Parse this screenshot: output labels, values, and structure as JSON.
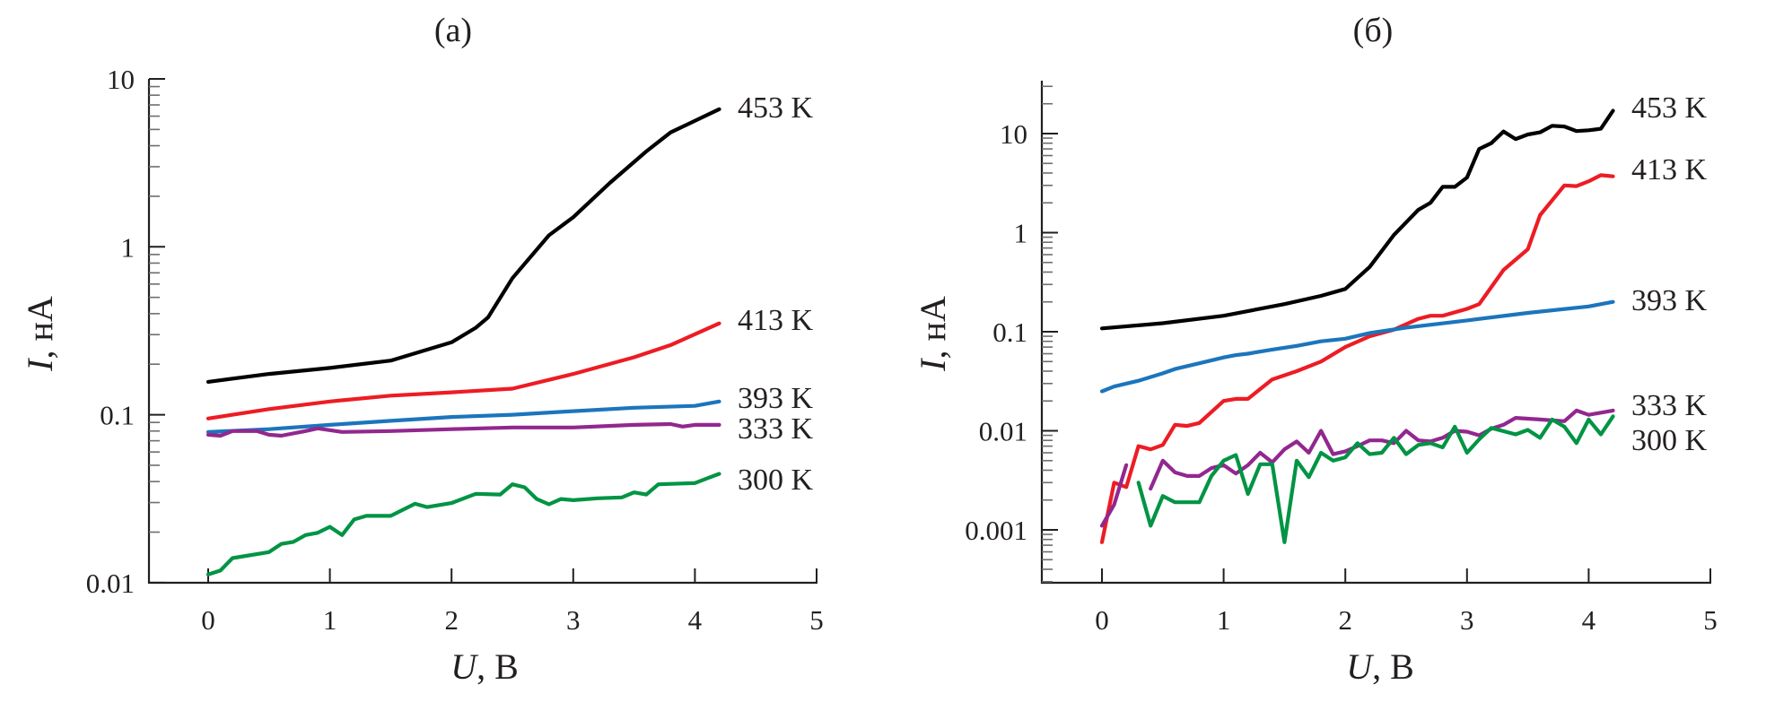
{
  "chart_data": [
    {
      "type": "line",
      "title": "(a)",
      "xlabel": "U, В",
      "xlabel_var": "U",
      "xlabel_unit": ", В",
      "ylabel": "I, нА",
      "ylabel_var": "I",
      "ylabel_unit": ", нА",
      "yscale": "log",
      "xlim": [
        -0.5,
        5
      ],
      "ylim": [
        0.01,
        10
      ],
      "xticks": [
        0,
        1,
        2,
        3,
        4,
        5
      ],
      "xtick_labels": [
        "0",
        "1",
        "2",
        "3",
        "4",
        "5"
      ],
      "yticks": [
        0.01,
        0.1,
        1,
        10
      ],
      "ytick_labels": [
        "0.01",
        "0.1",
        "1",
        "10"
      ],
      "grid": false,
      "legend": "inline-right",
      "series": [
        {
          "name": "453 K",
          "color": "#000000",
          "x": [
            0,
            0.5,
            1.0,
            1.5,
            2.0,
            2.2,
            2.3,
            2.5,
            2.8,
            3.0,
            3.3,
            3.6,
            3.8,
            4.2
          ],
          "y": [
            0.157,
            0.175,
            0.19,
            0.21,
            0.27,
            0.33,
            0.38,
            0.65,
            1.17,
            1.5,
            2.4,
            3.7,
            4.8,
            6.6
          ]
        },
        {
          "name": "413 K",
          "color": "#ed1c24",
          "x": [
            0,
            0.5,
            1.0,
            1.5,
            2.0,
            2.5,
            3.0,
            3.5,
            3.8,
            4.2
          ],
          "y": [
            0.095,
            0.108,
            0.12,
            0.13,
            0.136,
            0.143,
            0.175,
            0.22,
            0.26,
            0.35
          ]
        },
        {
          "name": "393 K",
          "color": "#1c75bc",
          "x": [
            0,
            0.5,
            1.0,
            1.5,
            2.0,
            2.5,
            3.0,
            3.5,
            4.0,
            4.2
          ],
          "y": [
            0.079,
            0.082,
            0.087,
            0.092,
            0.097,
            0.1,
            0.105,
            0.11,
            0.113,
            0.12
          ]
        },
        {
          "name": "333 K",
          "color": "#92278f",
          "x": [
            0,
            0.1,
            0.2,
            0.4,
            0.5,
            0.6,
            0.8,
            0.9,
            1.1,
            1.5,
            2.0,
            2.5,
            3.0,
            3.5,
            3.8,
            3.9,
            4.0,
            4.2
          ],
          "y": [
            0.076,
            0.075,
            0.08,
            0.08,
            0.076,
            0.075,
            0.08,
            0.083,
            0.079,
            0.08,
            0.082,
            0.084,
            0.084,
            0.087,
            0.088,
            0.085,
            0.087,
            0.087
          ]
        },
        {
          "name": "300 K",
          "color": "#009444",
          "x": [
            0,
            0.1,
            0.2,
            0.5,
            0.6,
            0.7,
            0.8,
            0.9,
            1.0,
            1.1,
            1.2,
            1.3,
            1.5,
            1.7,
            1.8,
            2.0,
            2.2,
            2.4,
            2.5,
            2.6,
            2.7,
            2.8,
            2.9,
            3.0,
            3.2,
            3.4,
            3.5,
            3.6,
            3.7,
            4.0,
            4.1,
            4.2
          ],
          "y": [
            0.0112,
            0.0118,
            0.014,
            0.0152,
            0.017,
            0.0175,
            0.0192,
            0.0198,
            0.0215,
            0.0192,
            0.0238,
            0.025,
            0.025,
            0.0295,
            0.0282,
            0.0298,
            0.0338,
            0.0335,
            0.0385,
            0.037,
            0.0315,
            0.0293,
            0.0315,
            0.031,
            0.0318,
            0.0322,
            0.0345,
            0.0335,
            0.0385,
            0.0392,
            0.0418,
            0.0445
          ]
        }
      ]
    },
    {
      "type": "line",
      "title": "(б)",
      "xlabel": "U, В",
      "xlabel_var": "U",
      "xlabel_unit": ", В",
      "ylabel": "I, нА",
      "ylabel_var": "I",
      "ylabel_unit": ", нА",
      "yscale": "log",
      "xlim": [
        -0.5,
        5
      ],
      "ylim": [
        0.0003,
        35
      ],
      "xticks": [
        0,
        1,
        2,
        3,
        4,
        5
      ],
      "xtick_labels": [
        "0",
        "1",
        "2",
        "3",
        "4",
        "5"
      ],
      "yticks": [
        0.001,
        0.01,
        0.1,
        1,
        10
      ],
      "ytick_labels": [
        "0.001",
        "0.01",
        "0.1",
        "1",
        "10"
      ],
      "grid": false,
      "legend": "inline-right",
      "series": [
        {
          "name": "453 K",
          "color": "#000000",
          "x": [
            0,
            0.5,
            1.0,
            1.5,
            1.8,
            2.0,
            2.2,
            2.4,
            2.6,
            2.7,
            2.8,
            2.9,
            3.0,
            3.1,
            3.2,
            3.3,
            3.4,
            3.5,
            3.6,
            3.7,
            3.8,
            3.9,
            4.0,
            4.1,
            4.2
          ],
          "y": [
            0.108,
            0.122,
            0.145,
            0.19,
            0.23,
            0.27,
            0.45,
            0.95,
            1.7,
            2.0,
            2.9,
            2.9,
            3.6,
            7.0,
            8.0,
            10.5,
            8.8,
            9.8,
            10.3,
            12.0,
            11.8,
            10.6,
            10.8,
            11.2,
            17.0
          ]
        },
        {
          "name": "413 K",
          "color": "#ed1c24",
          "x": [
            0,
            0.1,
            0.2,
            0.3,
            0.4,
            0.5,
            0.6,
            0.7,
            0.8,
            1.0,
            1.1,
            1.2,
            1.4,
            1.6,
            1.8,
            2.0,
            2.2,
            2.4,
            2.6,
            2.7,
            2.8,
            3.0,
            3.1,
            3.3,
            3.5,
            3.6,
            3.8,
            3.9,
            4.0,
            4.1,
            4.2
          ],
          "y": [
            0.00075,
            0.003,
            0.0027,
            0.007,
            0.0065,
            0.0072,
            0.0115,
            0.0112,
            0.012,
            0.02,
            0.021,
            0.021,
            0.033,
            0.04,
            0.05,
            0.07,
            0.09,
            0.105,
            0.135,
            0.145,
            0.145,
            0.17,
            0.19,
            0.42,
            0.68,
            1.5,
            3.0,
            2.95,
            3.3,
            3.8,
            3.7
          ]
        },
        {
          "name": "393 K",
          "color": "#1c75bc",
          "x": [
            0,
            0.1,
            0.3,
            0.5,
            0.6,
            0.8,
            1.0,
            1.1,
            1.2,
            1.4,
            1.6,
            1.8,
            2.0,
            2.2,
            2.5,
            3.0,
            3.5,
            4.0,
            4.2
          ],
          "y": [
            0.025,
            0.028,
            0.032,
            0.038,
            0.042,
            0.048,
            0.055,
            0.058,
            0.06,
            0.066,
            0.072,
            0.08,
            0.085,
            0.097,
            0.11,
            0.13,
            0.155,
            0.18,
            0.2
          ]
        },
        {
          "name": "333 K",
          "color": "#92278f",
          "segments": [
            {
              "x": [
                0,
                0.1,
                0.2
              ],
              "y": [
                0.0011,
                0.0018,
                0.0045
              ]
            },
            {
              "x": [
                0.4,
                0.5,
                0.6,
                0.7,
                0.8,
                0.9,
                1.0,
                1.1,
                1.2,
                1.3,
                1.4,
                1.5,
                1.6,
                1.7,
                1.8,
                1.9,
                2.0,
                2.1,
                2.2,
                2.3,
                2.4,
                2.5,
                2.6,
                2.7,
                2.8,
                2.9,
                3.0,
                3.1,
                3.2,
                3.3,
                3.4,
                3.6,
                3.8,
                3.9,
                4.0,
                4.2
              ],
              "y": [
                0.0026,
                0.005,
                0.0038,
                0.0035,
                0.0035,
                0.0042,
                0.0045,
                0.0037,
                0.0045,
                0.006,
                0.0048,
                0.0065,
                0.0078,
                0.006,
                0.01,
                0.0058,
                0.0062,
                0.007,
                0.008,
                0.008,
                0.0075,
                0.01,
                0.008,
                0.0078,
                0.0085,
                0.01,
                0.0098,
                0.009,
                0.0105,
                0.0115,
                0.0135,
                0.013,
                0.0125,
                0.016,
                0.0145,
                0.016
              ]
            }
          ]
        },
        {
          "name": "300 K",
          "color": "#009444",
          "x": [
            0.3,
            0.4,
            0.5,
            0.6,
            0.8,
            0.9,
            1.0,
            1.1,
            1.2,
            1.3,
            1.4,
            1.5,
            1.6,
            1.7,
            1.8,
            1.9,
            2.0,
            2.1,
            2.2,
            2.3,
            2.4,
            2.5,
            2.6,
            2.7,
            2.8,
            2.9,
            3.0,
            3.1,
            3.2,
            3.4,
            3.5,
            3.6,
            3.7,
            3.8,
            3.9,
            4.0,
            4.1,
            4.2
          ],
          "y": [
            0.003,
            0.0011,
            0.0022,
            0.0019,
            0.0019,
            0.0035,
            0.005,
            0.0057,
            0.0023,
            0.0046,
            0.0046,
            0.00075,
            0.005,
            0.0034,
            0.006,
            0.005,
            0.0054,
            0.0075,
            0.0058,
            0.006,
            0.0085,
            0.0058,
            0.0072,
            0.0075,
            0.0068,
            0.011,
            0.006,
            0.0082,
            0.0107,
            0.0092,
            0.0102,
            0.0085,
            0.013,
            0.011,
            0.0075,
            0.013,
            0.0092,
            0.014
          ]
        }
      ]
    }
  ]
}
